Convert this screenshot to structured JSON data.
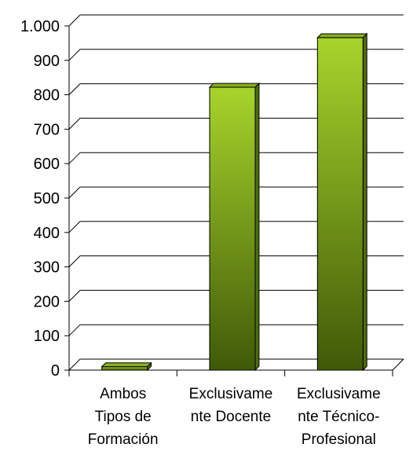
{
  "chart_data": {
    "type": "bar",
    "style": "3d-column",
    "categories": [
      [
        "Ambos",
        "Tipos de",
        "Formación"
      ],
      [
        "Exclusivame",
        "nte Docente"
      ],
      [
        "Exclusivame",
        "nte Técnico-",
        "Profesional"
      ]
    ],
    "values": [
      10,
      822,
      966
    ],
    "ylim": [
      0,
      1000
    ],
    "y_ticks": [
      0,
      100,
      200,
      300,
      400,
      500,
      600,
      700,
      800,
      900,
      1000
    ],
    "y_tick_labels": [
      "0",
      "100",
      "200",
      "300",
      "400",
      "500",
      "600",
      "700",
      "800",
      "900",
      "1.000"
    ],
    "grid": true,
    "legend": "none",
    "colors": {
      "bar_top": "#a8d42c",
      "bar_bottom": "#3f5a08",
      "bar_side": "#4e6d0a",
      "bar_cap": "#86b01f",
      "grid": "#000000",
      "axis": "#000000"
    }
  }
}
